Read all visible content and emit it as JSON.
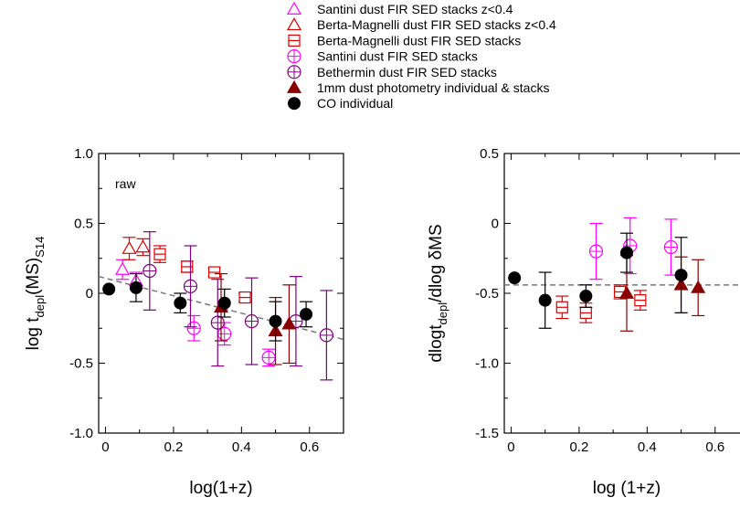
{
  "legend": {
    "items": [
      {
        "label": "Santini dust FIR SED stacks z<0.4",
        "marker": "triangle-open",
        "color": "#ff00ff"
      },
      {
        "label": "Berta-Magnelli dust FIR SED stacks z<0.4",
        "marker": "triangle-open",
        "color": "#dd0000"
      },
      {
        "label": "Berta-Magnelli dust FIR SED stacks",
        "marker": "square-minus",
        "color": "#dd0000"
      },
      {
        "label": "Santini dust FIR SED stacks",
        "marker": "circle-plus",
        "color": "#ff00ff"
      },
      {
        "label": "Bethermin dust FIR SED stacks",
        "marker": "circle-plus",
        "color": "#800080"
      },
      {
        "label": "1mm dust photometry individual & stacks",
        "marker": "triangle-filled",
        "color": "#8b0000"
      },
      {
        "label": "CO individual",
        "marker": "circle-filled",
        "color": "#000000"
      }
    ]
  },
  "chart_data": [
    {
      "type": "scatter",
      "annotation": "raw",
      "xlabel": "log(1+z)",
      "ylabel_parts": [
        "log t",
        "depl",
        "(MS)",
        "S14"
      ],
      "xlim": [
        -0.02,
        0.7
      ],
      "ylim": [
        -1.0,
        1.0
      ],
      "xticks": [
        0,
        0.2,
        0.4,
        0.6
      ],
      "xtick_labels": [
        "0",
        "0.2",
        "0.4",
        "0.6"
      ],
      "yticks": [
        -1.0,
        -0.5,
        0,
        0.5,
        1.0
      ],
      "ytick_labels": [
        "-1.0",
        "-0.5",
        "0",
        "0.5",
        "1.0"
      ],
      "fit_line": {
        "x": [
          -0.02,
          0.7
        ],
        "y": [
          0.12,
          -0.33
        ],
        "color": "#777777"
      },
      "series": [
        {
          "name": "Santini dust FIR SED stacks z<0.4",
          "marker": "triangle-open",
          "color": "#ff00ff",
          "points": [
            {
              "x": 0.05,
              "y": 0.17,
              "err": 0.07
            },
            {
              "x": 0.09,
              "y": 0.09,
              "err": 0.06
            }
          ]
        },
        {
          "name": "Berta-Magnelli dust FIR SED stacks z<0.4",
          "marker": "triangle-open",
          "color": "#dd0000",
          "points": [
            {
              "x": 0.07,
              "y": 0.32,
              "err": 0.08
            },
            {
              "x": 0.11,
              "y": 0.33,
              "err": 0.06
            }
          ]
        },
        {
          "name": "Berta-Magnelli dust FIR SED stacks",
          "marker": "square-minus",
          "color": "#dd0000",
          "points": [
            {
              "x": 0.16,
              "y": 0.28,
              "err": 0.06
            },
            {
              "x": 0.24,
              "y": 0.19,
              "err": 0.04
            },
            {
              "x": 0.32,
              "y": 0.15,
              "err": 0.03
            },
            {
              "x": 0.41,
              "y": -0.03,
              "err": 0.03
            }
          ]
        },
        {
          "name": "Santini dust FIR SED stacks",
          "marker": "circle-plus",
          "color": "#ff00ff",
          "points": [
            {
              "x": 0.26,
              "y": -0.25,
              "err": 0.09
            },
            {
              "x": 0.35,
              "y": -0.29,
              "err": 0.08
            },
            {
              "x": 0.48,
              "y": -0.46,
              "err": 0.06
            }
          ]
        },
        {
          "name": "Bethermin dust FIR SED stacks",
          "marker": "circle-plus",
          "color": "#800080",
          "points": [
            {
              "x": 0.13,
              "y": 0.16,
              "err": 0.28
            },
            {
              "x": 0.25,
              "y": 0.05,
              "err": 0.29
            },
            {
              "x": 0.33,
              "y": -0.21,
              "err": 0.31
            },
            {
              "x": 0.43,
              "y": -0.2,
              "err": 0.31
            },
            {
              "x": 0.56,
              "y": -0.2,
              "err": 0.32
            },
            {
              "x": 0.65,
              "y": -0.3,
              "err": 0.32
            }
          ]
        },
        {
          "name": "1mm dust photometry individual & stacks",
          "marker": "triangle-filled",
          "color": "#8b0000",
          "points": [
            {
              "x": 0.34,
              "y": -0.1,
              "err": 0.24
            },
            {
              "x": 0.5,
              "y": -0.27,
              "err": 0.24
            },
            {
              "x": 0.54,
              "y": -0.22,
              "err": 0.28
            }
          ]
        },
        {
          "name": "CO individual",
          "marker": "circle-filled",
          "color": "#000000",
          "points": [
            {
              "x": 0.01,
              "y": 0.03,
              "err": 0
            },
            {
              "x": 0.09,
              "y": 0.04,
              "err": 0.1
            },
            {
              "x": 0.22,
              "y": -0.07,
              "err": 0.07
            },
            {
              "x": 0.35,
              "y": -0.07,
              "err": 0.1
            },
            {
              "x": 0.5,
              "y": -0.2,
              "err": 0.14
            },
            {
              "x": 0.59,
              "y": -0.15,
              "err": 0.09
            }
          ]
        }
      ]
    },
    {
      "type": "scatter",
      "annotation": "",
      "xlabel": "log (1+z)",
      "ylabel_parts": [
        "dlogt",
        "depl",
        "/dlog δMS",
        ""
      ],
      "xlim": [
        -0.02,
        0.7
      ],
      "ylim": [
        -1.5,
        0.5
      ],
      "xticks": [
        0,
        0.2,
        0.4,
        0.6
      ],
      "xtick_labels": [
        "0",
        "0.2",
        "0.4",
        "0.6"
      ],
      "yticks": [
        -1.5,
        -1.0,
        -0.5,
        0,
        0.5
      ],
      "ytick_labels": [
        "-1.5",
        "-1.0",
        "-0.5",
        "0",
        "0.5"
      ],
      "fit_line": {
        "x": [
          -0.02,
          0.7
        ],
        "y": [
          -0.44,
          -0.44
        ],
        "color": "#777777"
      },
      "series": [
        {
          "name": "Berta-Magnelli dust FIR SED stacks",
          "marker": "square-minus",
          "color": "#dd0000",
          "points": [
            {
              "x": 0.15,
              "y": -0.6,
              "err": 0.08
            },
            {
              "x": 0.22,
              "y": -0.64,
              "err": 0.07
            },
            {
              "x": 0.32,
              "y": -0.49,
              "err": 0.05
            },
            {
              "x": 0.38,
              "y": -0.55,
              "err": 0.07
            }
          ]
        },
        {
          "name": "Santini dust FIR SED stacks",
          "marker": "circle-plus",
          "color": "#ff00ff",
          "points": [
            {
              "x": 0.25,
              "y": -0.2,
              "err": 0.2
            },
            {
              "x": 0.35,
              "y": -0.16,
              "err": 0.2
            },
            {
              "x": 0.47,
              "y": -0.17,
              "err": 0.2
            }
          ]
        },
        {
          "name": "1mm dust photometry individual & stacks",
          "marker": "triangle-filled",
          "color": "#8b0000",
          "points": [
            {
              "x": 0.34,
              "y": -0.5,
              "err": 0.27
            },
            {
              "x": 0.5,
              "y": -0.44,
              "err": 0.2
            },
            {
              "x": 0.55,
              "y": -0.46,
              "err": 0.2
            }
          ]
        },
        {
          "name": "CO individual",
          "marker": "circle-filled",
          "color": "#000000",
          "points": [
            {
              "x": 0.01,
              "y": -0.39,
              "err": 0
            },
            {
              "x": 0.1,
              "y": -0.55,
              "err": 0.2
            },
            {
              "x": 0.22,
              "y": -0.52,
              "err": 0.08
            },
            {
              "x": 0.34,
              "y": -0.21,
              "err": 0.14
            },
            {
              "x": 0.5,
              "y": -0.37,
              "err": 0.27
            }
          ]
        }
      ]
    }
  ]
}
